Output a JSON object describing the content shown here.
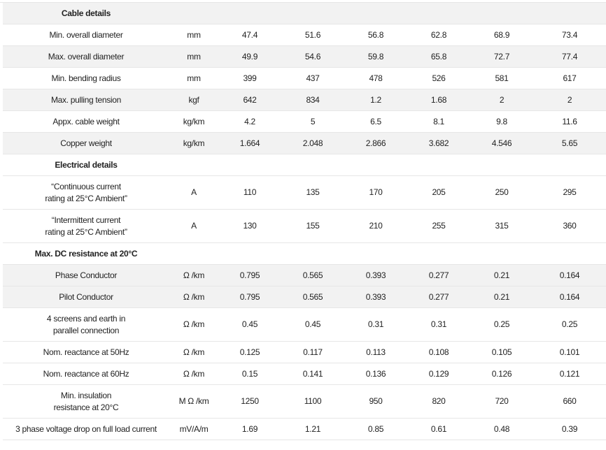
{
  "sections": [
    {
      "title": "Cable details",
      "rows": [
        {
          "param": "Min. overall diameter",
          "unit": "mm",
          "values": [
            "47.4",
            "51.6",
            "56.8",
            "62.8",
            "68.9",
            "73.4"
          ]
        },
        {
          "param": "Max. overall diameter",
          "unit": "mm",
          "values": [
            "49.9",
            "54.6",
            "59.8",
            "65.8",
            "72.7",
            "77.4"
          ]
        },
        {
          "param": "Min. bending radius",
          "unit": "mm",
          "values": [
            "399",
            "437",
            "478",
            "526",
            "581",
            "617"
          ]
        },
        {
          "param": "Max. pulling tension",
          "unit": "kgf",
          "values": [
            "642",
            "834",
            "1.2",
            "1.68",
            "2",
            "2"
          ]
        },
        {
          "param": "Appx. cable weight",
          "unit": "kg/km",
          "values": [
            "4.2",
            "5",
            "6.5",
            "8.1",
            "9.8",
            "11.6"
          ]
        },
        {
          "param": "Copper weight",
          "unit": "kg/km",
          "values": [
            "1.664",
            "2.048",
            "2.866",
            "3.682",
            "4.546",
            "5.65"
          ]
        }
      ]
    },
    {
      "title": "Electrical details",
      "rows": [
        {
          "param_line1": "“Continuous current",
          "param_line2": "rating at 25°C Ambient”",
          "unit": "A",
          "values": [
            "110",
            "135",
            "170",
            "205",
            "250",
            "295"
          ]
        },
        {
          "param_line1": "“Intermittent current",
          "param_line2": "rating at 25°C Ambient”",
          "unit": "A",
          "values": [
            "130",
            "155",
            "210",
            "255",
            "315",
            "360"
          ]
        }
      ]
    },
    {
      "title": "Max. DC resistance at 20°C",
      "rows": [
        {
          "param": "Phase Conductor",
          "unit": "Ω /km",
          "values": [
            "0.795",
            "0.565",
            "0.393",
            "0.277",
            "0.21",
            "0.164"
          ]
        },
        {
          "param": "Pilot Conductor",
          "unit": "Ω /km",
          "values": [
            "0.795",
            "0.565",
            "0.393",
            "0.277",
            "0.21",
            "0.164"
          ]
        },
        {
          "param_line1": "4 screens and earth in",
          "param_line2": "parallel connection",
          "unit": "Ω /km",
          "values": [
            "0.45",
            "0.45",
            "0.31",
            "0.31",
            "0.25",
            "0.25"
          ]
        },
        {
          "param": "Nom. reactance at 50Hz",
          "unit": "Ω /km",
          "values": [
            "0.125",
            "0.117",
            "0.113",
            "0.108",
            "0.105",
            "0.101"
          ]
        },
        {
          "param": "Nom. reactance at 60Hz",
          "unit": "Ω /km",
          "values": [
            "0.15",
            "0.141",
            "0.136",
            "0.129",
            "0.126",
            "0.121"
          ]
        },
        {
          "param_line1": "Min. insulation",
          "param_line2": "resistance at 20°C",
          "unit": "M Ω /km",
          "values": [
            "1250",
            "1100",
            "950",
            "820",
            "720",
            "660"
          ]
        },
        {
          "param": "3 phase voltage drop on full load current",
          "unit": "mV/A/m",
          "values": [
            "1.69",
            "1.21",
            "0.85",
            "0.61",
            "0.48",
            "0.39"
          ]
        }
      ]
    }
  ]
}
